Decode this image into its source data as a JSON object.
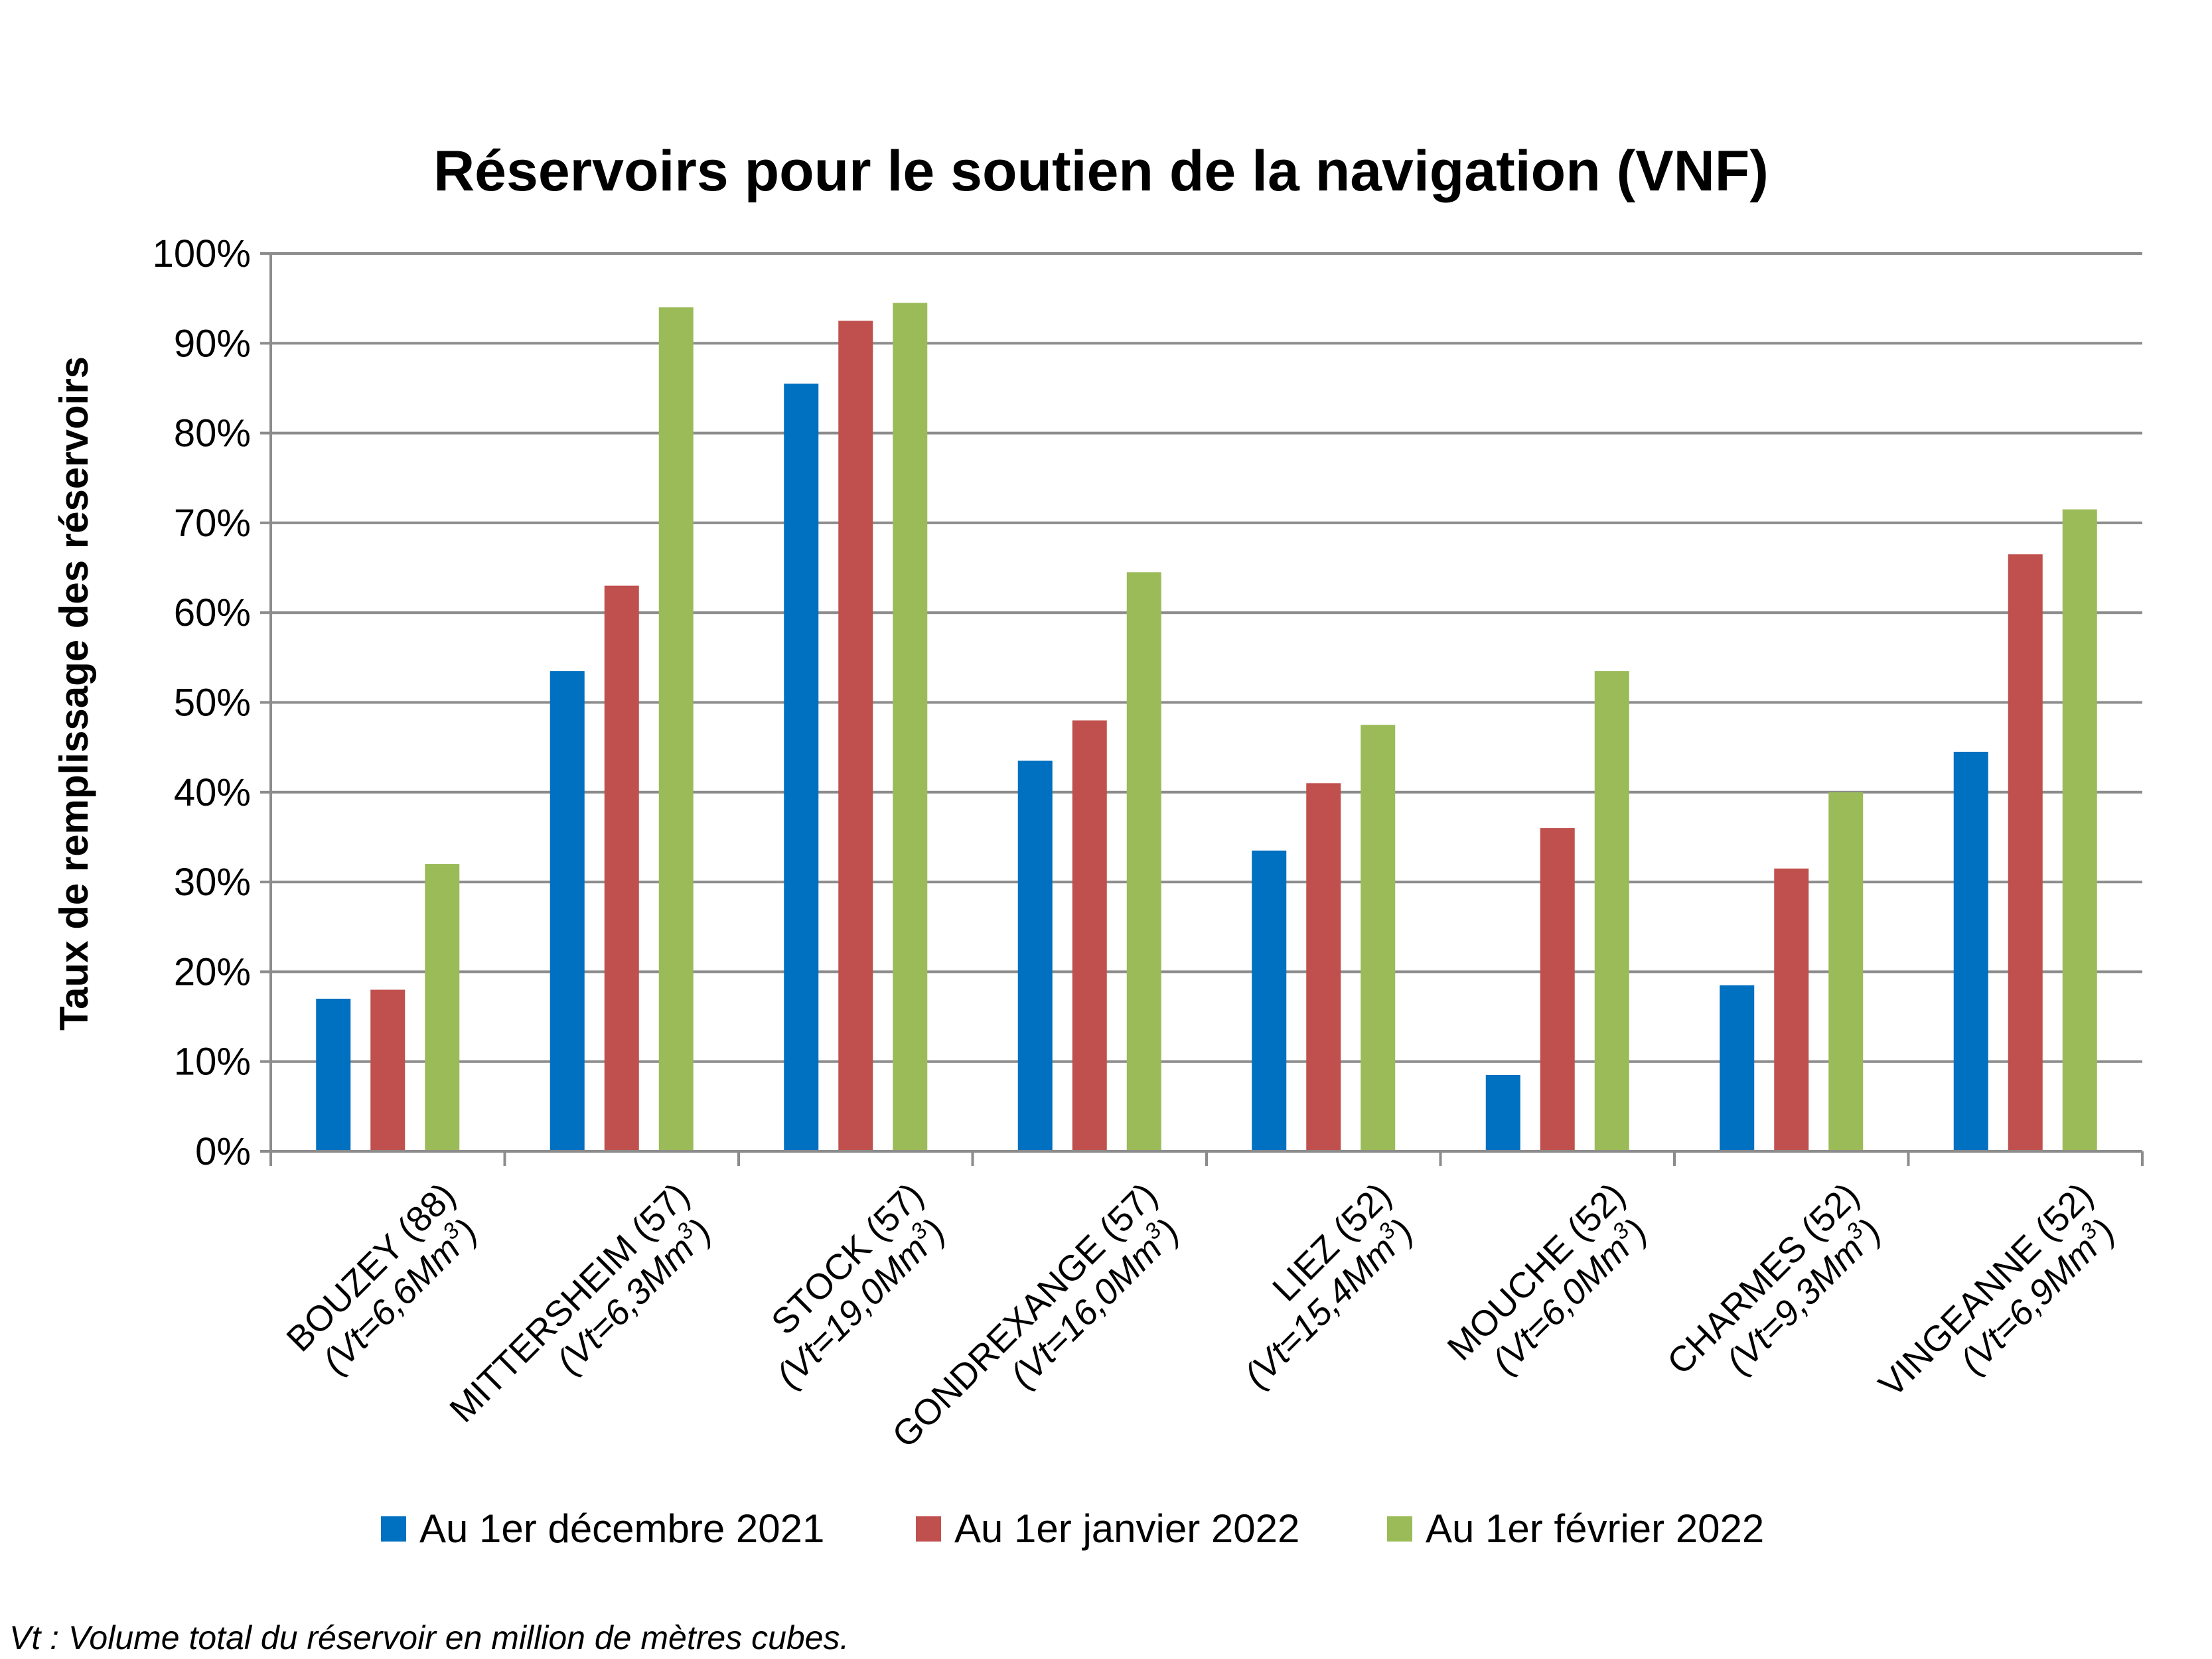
{
  "chart_data": {
    "type": "bar",
    "title": "Réservoirs pour le soutien de la navigation (VNF)",
    "ylabel": "Taux de remplissage des réservoirs",
    "xlabel": "",
    "ylim": [
      0,
      100
    ],
    "ytick_labels": [
      "0%",
      "10%",
      "20%",
      "30%",
      "40%",
      "50%",
      "60%",
      "70%",
      "80%",
      "90%",
      "100%"
    ],
    "categories": [
      {
        "name": "BOUZEY (88)",
        "vt": "Vt=6,6Mm",
        "exp": "3"
      },
      {
        "name": "MITTERSHEIM (57)",
        "vt": "Vt=6,3Mm",
        "exp": "3"
      },
      {
        "name": "STOCK (57)",
        "vt": "Vt=19,0Mm",
        "exp": "3"
      },
      {
        "name": "GONDREXANGE (57)",
        "vt": "Vt=16,0Mm",
        "exp": "3"
      },
      {
        "name": "LIEZ (52)",
        "vt": "Vt=15,4Mm",
        "exp": "3"
      },
      {
        "name": "MOUCHE (52)",
        "vt": "Vt=6,0Mm",
        "exp": "3"
      },
      {
        "name": "CHARMES (52)",
        "vt": "Vt=9,3Mm",
        "exp": "3"
      },
      {
        "name": "VINGEANNE (52)",
        "vt": "Vt=6,9Mm",
        "exp": "3"
      }
    ],
    "series": [
      {
        "name": "Au 1er décembre 2021",
        "color": "#0070C0",
        "values": [
          17,
          53.5,
          85.5,
          43.5,
          33.5,
          8.5,
          18.5,
          44.5
        ]
      },
      {
        "name": "Au 1er janvier 2022",
        "color": "#C0504D",
        "values": [
          18,
          63,
          92.5,
          48,
          41,
          36,
          31.5,
          66.5
        ]
      },
      {
        "name": "Au 1er février 2022",
        "color": "#9BBB59",
        "values": [
          32,
          94,
          94.5,
          64.5,
          47.5,
          53.5,
          40,
          71.5
        ]
      }
    ],
    "grid": true,
    "legend_position": "bottom"
  },
  "footnote": "Vt : Volume total du réservoir en million de mètres cubes."
}
